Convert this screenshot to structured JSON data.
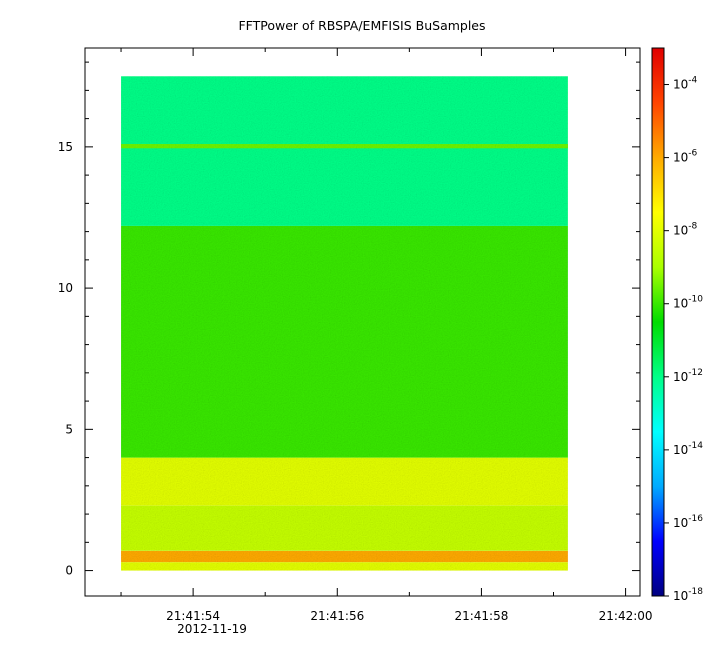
{
  "chart_data": {
    "type": "heatmap",
    "title": "FFTPower of RBSPA/EMFISIS  BuSamples",
    "xlabel": "",
    "ylabel": "",
    "x_ticks": [
      {
        "value": "21:41:54",
        "label": "21:41:54"
      },
      {
        "value": "21:41:56",
        "label": "21:41:56"
      },
      {
        "value": "21:41:58",
        "label": "21:41:58"
      },
      {
        "value": "21:42:00",
        "label": "21:42:00"
      }
    ],
    "x_date_label": "2012-11-19",
    "xlim": [
      "21:41:52.5",
      "21:42:00.2"
    ],
    "y_ticks": [
      0,
      5,
      10,
      15
    ],
    "ylim": [
      -0.9,
      18.5
    ],
    "data_xrange": [
      "21:41:53.0",
      "21:41:59.2"
    ],
    "data_yrange": [
      0,
      17.5
    ],
    "colorbar": {
      "scale": "log",
      "range": [
        1e-18,
        0.001
      ],
      "tick_values": [
        1e-18,
        1e-16,
        1e-14,
        1e-12,
        1e-10,
        1e-08,
        1e-06,
        0.0001
      ],
      "tick_labels": [
        {
          "base": "10",
          "exp": "-18"
        },
        {
          "base": "10",
          "exp": "-16"
        },
        {
          "base": "10",
          "exp": "-14"
        },
        {
          "base": "10",
          "exp": "-12"
        },
        {
          "base": "10",
          "exp": "-10"
        },
        {
          "base": "10",
          "exp": "-8"
        },
        {
          "base": "10",
          "exp": "-6"
        },
        {
          "base": "10",
          "exp": "-4"
        }
      ],
      "colormap": [
        "#000080",
        "#0000ff",
        "#00aaff",
        "#00ffff",
        "#00ff88",
        "#00dd00",
        "#aaff00",
        "#ffff00",
        "#ffaa00",
        "#ff4400",
        "#e00000"
      ]
    },
    "bands": [
      {
        "y_range": [
          0,
          0.3
        ],
        "power": 1e-08
      },
      {
        "y_range": [
          0.3,
          0.7
        ],
        "power": 1e-06
      },
      {
        "y_range": [
          0.7,
          2.3
        ],
        "power": 3e-09
      },
      {
        "y_range": [
          2.3,
          4.0
        ],
        "power": 1e-08
      },
      {
        "y_range": [
          4.0,
          12.2
        ],
        "power": 1e-10
      },
      {
        "y_range": [
          12.2,
          17.5
        ],
        "power": 1e-12
      },
      {
        "y_range": [
          14.95,
          15.1
        ],
        "power": 3e-10
      }
    ],
    "grid": false
  }
}
